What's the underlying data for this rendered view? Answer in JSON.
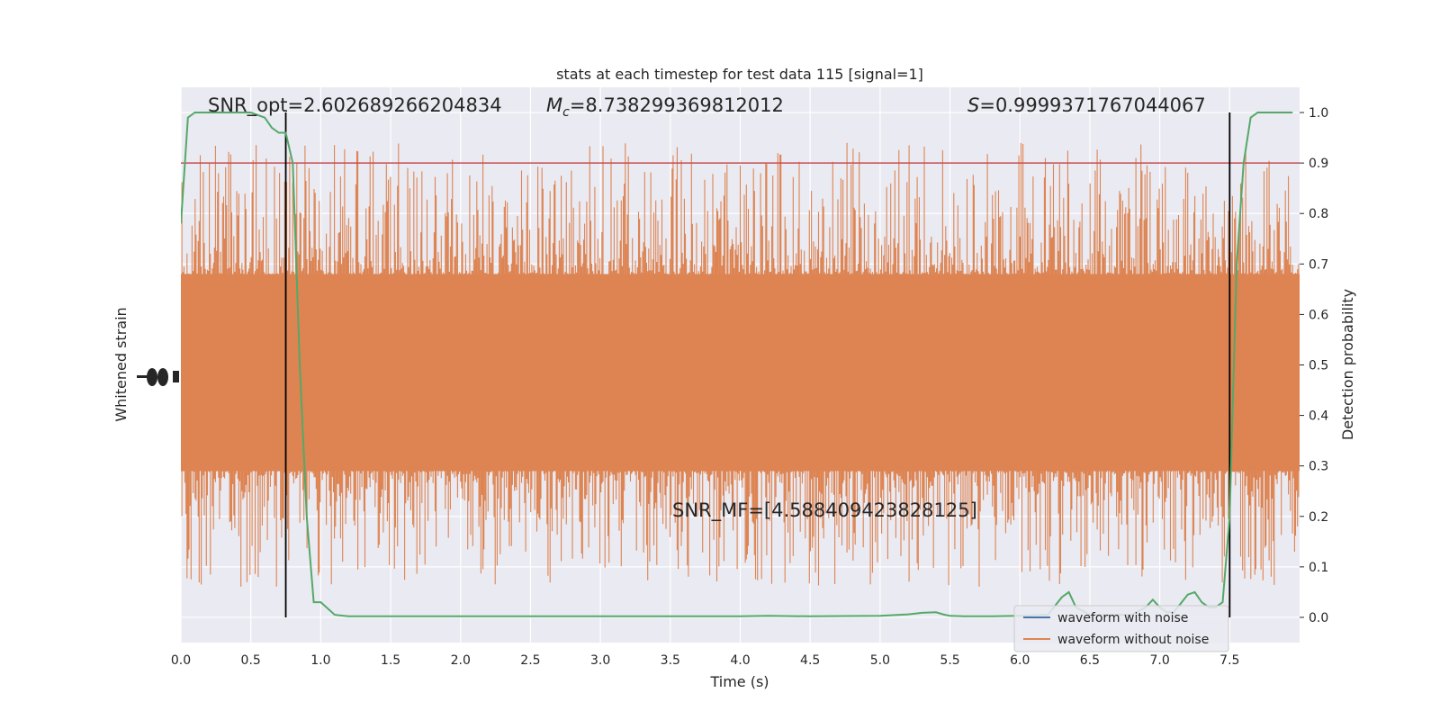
{
  "chart_data": {
    "type": "line",
    "title": "stats at each timestep for test data 115 [signal=1]",
    "xlabel": "Time (s)",
    "ylabel_left": "Whitened strain",
    "ylabel_right": "Detection probability",
    "xlim": [
      0,
      8
    ],
    "ylim_right": [
      -0.05,
      1.05
    ],
    "x_ticks": [
      "0.0",
      "0.5",
      "1.0",
      "1.5",
      "2.0",
      "2.5",
      "3.0",
      "3.5",
      "4.0",
      "4.5",
      "5.0",
      "5.5",
      "6.0",
      "6.5",
      "7.0",
      "7.5"
    ],
    "y_ticks_right": [
      "0.0",
      "0.1",
      "0.2",
      "0.3",
      "0.4",
      "0.5",
      "0.6",
      "0.7",
      "0.8",
      "0.9",
      "1.0"
    ],
    "annotations": {
      "snr_opt": "SNR_opt=2.602689266204834",
      "mc_symbol": "M",
      "mc_subscript": "c",
      "mc_value": "=8.738299369812012",
      "s_symbol": "S",
      "s_value": "=0.9999371767044067",
      "snr_mf": "SNR_MF=[4.588409423828125]"
    },
    "threshold": 0.9,
    "vertical_markers": [
      0.75,
      7.5
    ],
    "series": [
      {
        "name": "waveform with noise",
        "color": "#4c72b0",
        "style": "line",
        "amplitude_range": [
          0.01,
          0.99
        ]
      },
      {
        "name": "waveform without noise",
        "color": "#dd8452",
        "style": "noise-band",
        "core_range": [
          0.29,
          0.68
        ],
        "amplitude_range": [
          0.0,
          1.0
        ]
      },
      {
        "name": "Detection probability",
        "color": "#55a868",
        "x": [
          0.0,
          0.05,
          0.1,
          0.15,
          0.2,
          0.3,
          0.4,
          0.5,
          0.6,
          0.65,
          0.7,
          0.75,
          0.8,
          0.85,
          0.9,
          0.95,
          1.0,
          1.1,
          1.2,
          1.5,
          2.0,
          2.5,
          3.0,
          3.5,
          4.0,
          4.2,
          4.5,
          5.0,
          5.2,
          5.3,
          5.4,
          5.45,
          5.5,
          5.6,
          5.7,
          5.8,
          6.0,
          6.2,
          6.3,
          6.35,
          6.4,
          6.5,
          6.8,
          6.9,
          6.95,
          7.0,
          7.05,
          7.1,
          7.2,
          7.25,
          7.3,
          7.35,
          7.4,
          7.45,
          7.5,
          7.55,
          7.6,
          7.65,
          7.7,
          7.8,
          7.9,
          7.95
        ],
        "y": [
          0.78,
          0.99,
          1.0,
          1.0,
          1.0,
          1.0,
          1.0,
          1.0,
          0.99,
          0.97,
          0.96,
          0.96,
          0.9,
          0.5,
          0.2,
          0.03,
          0.03,
          0.005,
          0.002,
          0.002,
          0.002,
          0.002,
          0.002,
          0.002,
          0.002,
          0.003,
          0.002,
          0.003,
          0.006,
          0.009,
          0.01,
          0.006,
          0.003,
          0.002,
          0.002,
          0.002,
          0.003,
          0.005,
          0.04,
          0.05,
          0.02,
          0.005,
          0.005,
          0.02,
          0.035,
          0.02,
          0.01,
          0.01,
          0.045,
          0.05,
          0.03,
          0.02,
          0.02,
          0.03,
          0.2,
          0.7,
          0.9,
          0.99,
          1.0,
          1.0,
          1.0,
          1.0
        ]
      }
    ],
    "grid": true,
    "legend_position": "lower-right"
  }
}
